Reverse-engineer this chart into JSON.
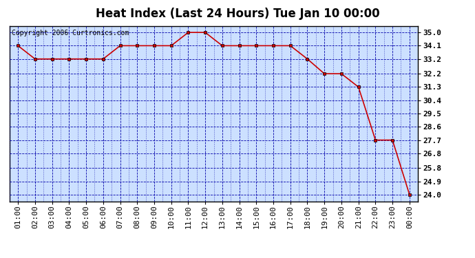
{
  "title": "Heat Index (Last 24 Hours) Tue Jan 10 00:00",
  "copyright": "Copyright 2006 Curtronics.com",
  "x_labels": [
    "01:00",
    "02:00",
    "03:00",
    "04:00",
    "05:00",
    "06:00",
    "07:00",
    "08:00",
    "09:00",
    "10:00",
    "11:00",
    "12:00",
    "13:00",
    "14:00",
    "15:00",
    "16:00",
    "17:00",
    "18:00",
    "19:00",
    "20:00",
    "21:00",
    "22:00",
    "23:00",
    "00:00"
  ],
  "y_values": [
    34.1,
    33.2,
    33.2,
    33.2,
    33.2,
    33.2,
    34.1,
    34.1,
    34.1,
    34.1,
    35.0,
    35.0,
    34.1,
    34.1,
    34.1,
    34.1,
    34.1,
    33.2,
    32.2,
    32.2,
    31.3,
    27.7,
    27.7,
    24.0
  ],
  "yticks": [
    24.0,
    24.9,
    25.8,
    26.8,
    27.7,
    28.6,
    29.5,
    30.4,
    31.3,
    32.2,
    33.2,
    34.1,
    35.0
  ],
  "ylim": [
    23.55,
    35.45
  ],
  "line_color": "#cc0000",
  "marker_color": "#000000",
  "bg_color": "#ffffff",
  "plot_bg": "#cce0ff",
  "grid_color_major": "#0000aa",
  "grid_color_minor": "#0000aa",
  "border_color": "#000000",
  "title_fontsize": 12,
  "copyright_fontsize": 7,
  "tick_fontsize": 8,
  "figwidth": 6.9,
  "figheight": 3.75,
  "dpi": 100
}
